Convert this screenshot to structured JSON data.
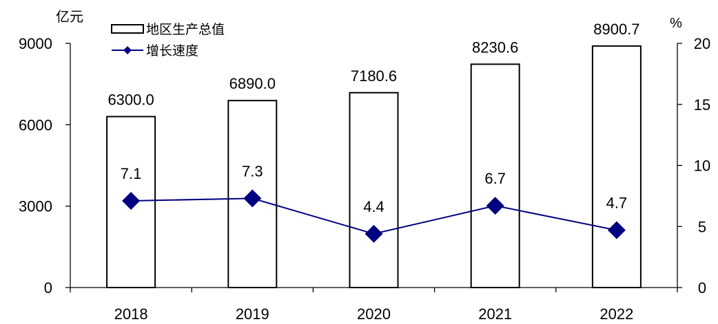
{
  "chart_data": {
    "type": "bar",
    "categories": [
      "2018",
      "2019",
      "2020",
      "2021",
      "2022"
    ],
    "series": [
      {
        "name": "地区生产总值",
        "type": "bar",
        "axis": "left",
        "values": [
          6300.0,
          6890.0,
          7180.6,
          8230.6,
          8900.7
        ],
        "labels": [
          "6300.0",
          "6890.0",
          "7180.6",
          "8230.6",
          "8900.7"
        ]
      },
      {
        "name": "增长速度",
        "type": "line",
        "axis": "right",
        "values": [
          7.1,
          7.3,
          4.4,
          6.7,
          4.7
        ],
        "labels": [
          "7.1",
          "7.3",
          "4.4",
          "6.7",
          "4.7"
        ]
      }
    ],
    "y_left": {
      "unit": "亿元",
      "ylim": [
        0,
        9000
      ],
      "ticks": [
        "0",
        "3000",
        "6000",
        "9000"
      ]
    },
    "y_right": {
      "unit": "%",
      "ylim": [
        0,
        20
      ],
      "ticks": [
        "0",
        "5",
        "10",
        "15",
        "20"
      ]
    },
    "grid": false,
    "legend_position": "top-left",
    "colors": {
      "bar_fill": "#ffffff",
      "bar_stroke": "#000000",
      "line": "#000080",
      "marker": "#000080",
      "axis": "#000000"
    }
  }
}
